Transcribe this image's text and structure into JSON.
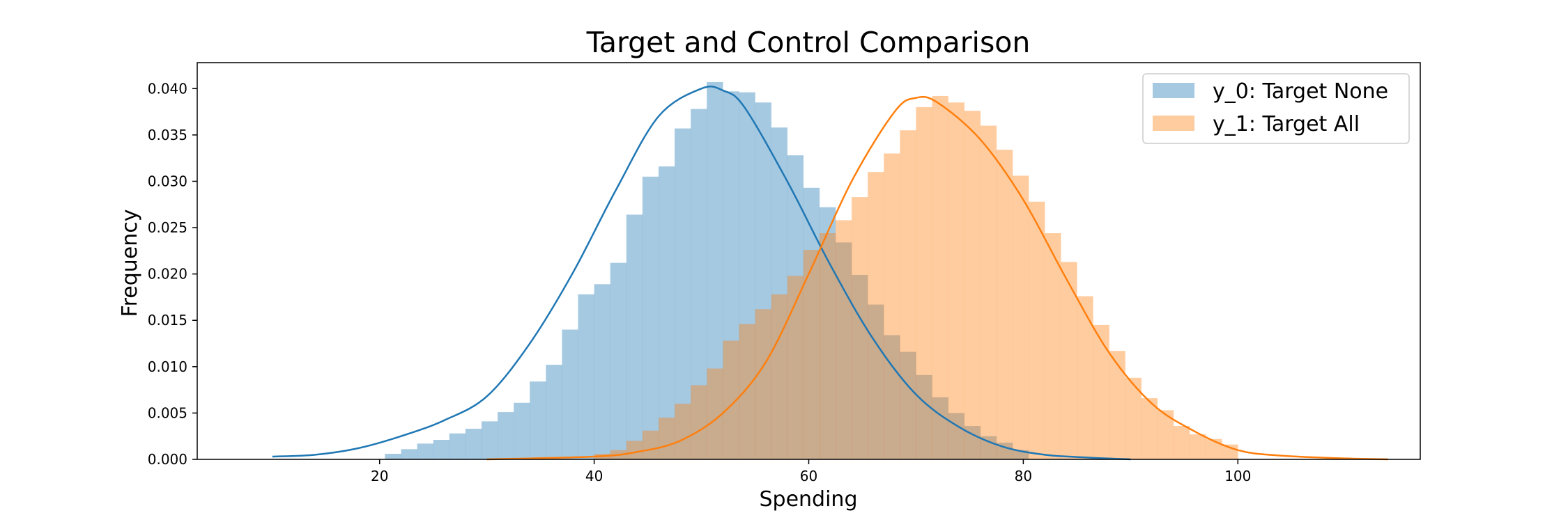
{
  "chart_data": {
    "type": "histogram",
    "title": "Target and Control Comparison",
    "xlabel": "Spending",
    "ylabel": "Frequency",
    "xlim": [
      3,
      117
    ],
    "ylim": [
      0,
      0.0428
    ],
    "x_ticks": [
      20,
      40,
      60,
      80,
      100
    ],
    "y_ticks": [
      0.0,
      0.005,
      0.01,
      0.015,
      0.02,
      0.025,
      0.03,
      0.035,
      0.04
    ],
    "x_tick_labels": [
      "20",
      "40",
      "60",
      "80",
      "100"
    ],
    "y_tick_labels": [
      "0.000",
      "0.005",
      "0.010",
      "0.015",
      "0.020",
      "0.025",
      "0.030",
      "0.035",
      "0.040"
    ],
    "grid": false,
    "legend_position": "upper right",
    "series": [
      {
        "name": "y_0: Target None",
        "color": "#1f77b4",
        "bin_edges": [
          20.5,
          22.0,
          23.5,
          25.0,
          26.5,
          28.0,
          29.5,
          31.0,
          32.5,
          34.0,
          35.5,
          37.0,
          38.5,
          40.0,
          41.5,
          43.0,
          44.5,
          46.0,
          47.5,
          49.0,
          50.5,
          52.0,
          53.5,
          55.0,
          56.5,
          58.0,
          59.5,
          61.0,
          62.5,
          64.0,
          65.5,
          67.0,
          68.5,
          70.0,
          71.5,
          73.0,
          74.5,
          76.0,
          77.5,
          79.0,
          80.5
        ],
        "bin_heights": [
          0.0006,
          0.0011,
          0.0017,
          0.0021,
          0.0028,
          0.0033,
          0.0041,
          0.0051,
          0.0061,
          0.0084,
          0.0102,
          0.014,
          0.0178,
          0.0189,
          0.0212,
          0.0264,
          0.0305,
          0.0316,
          0.0357,
          0.0378,
          0.0407,
          0.0397,
          0.0396,
          0.0385,
          0.0358,
          0.0328,
          0.0293,
          0.0272,
          0.0234,
          0.0199,
          0.0167,
          0.0134,
          0.0116,
          0.0091,
          0.0067,
          0.005,
          0.0036,
          0.0025,
          0.0018,
          0.001
        ],
        "kde": {
          "x": [
            10,
            14,
            18,
            22,
            26,
            30,
            34,
            38,
            42,
            46,
            50,
            52,
            54,
            58,
            62,
            66,
            70,
            74,
            78,
            82,
            86,
            90
          ],
          "y": [
            0.0003,
            0.0005,
            0.0012,
            0.0025,
            0.0042,
            0.0068,
            0.0125,
            0.0201,
            0.029,
            0.037,
            0.04,
            0.0398,
            0.038,
            0.03,
            0.021,
            0.013,
            0.007,
            0.0035,
            0.0014,
            0.0005,
            0.0002,
            0.0
          ]
        }
      },
      {
        "name": "y_1: Target All",
        "color": "#ff7f0e",
        "bin_edges": [
          40.0,
          41.5,
          43.0,
          44.5,
          46.0,
          47.5,
          49.0,
          50.5,
          52.0,
          53.5,
          55.0,
          56.5,
          58.0,
          59.5,
          61.0,
          62.5,
          64.0,
          65.5,
          67.0,
          68.5,
          70.0,
          71.5,
          73.0,
          74.5,
          76.0,
          77.5,
          79.0,
          80.5,
          82.0,
          83.5,
          85.0,
          86.5,
          88.0,
          89.5,
          91.0,
          92.5,
          94.0,
          95.5,
          97.0,
          98.5,
          100.0
        ],
        "bin_heights": [
          0.0006,
          0.001,
          0.002,
          0.0031,
          0.0045,
          0.006,
          0.008,
          0.0098,
          0.0128,
          0.0146,
          0.0162,
          0.0178,
          0.0198,
          0.0226,
          0.0244,
          0.0258,
          0.0283,
          0.031,
          0.033,
          0.0355,
          0.038,
          0.0392,
          0.0385,
          0.0376,
          0.036,
          0.0334,
          0.0306,
          0.0278,
          0.0244,
          0.0213,
          0.0176,
          0.0145,
          0.0117,
          0.0088,
          0.0066,
          0.0053,
          0.0036,
          0.0027,
          0.0022,
          0.0016
        ],
        "kde": {
          "x": [
            30,
            40,
            44,
            48,
            52,
            56,
            60,
            64,
            68,
            70,
            72,
            76,
            80,
            84,
            88,
            92,
            96,
            100,
            104,
            110,
            114
          ],
          "y": [
            0.0,
            0.0003,
            0.0008,
            0.002,
            0.005,
            0.0105,
            0.02,
            0.03,
            0.0375,
            0.039,
            0.0385,
            0.0345,
            0.028,
            0.0195,
            0.0115,
            0.006,
            0.003,
            0.001,
            0.0004,
            0.0001,
            0.0
          ]
        }
      }
    ]
  }
}
